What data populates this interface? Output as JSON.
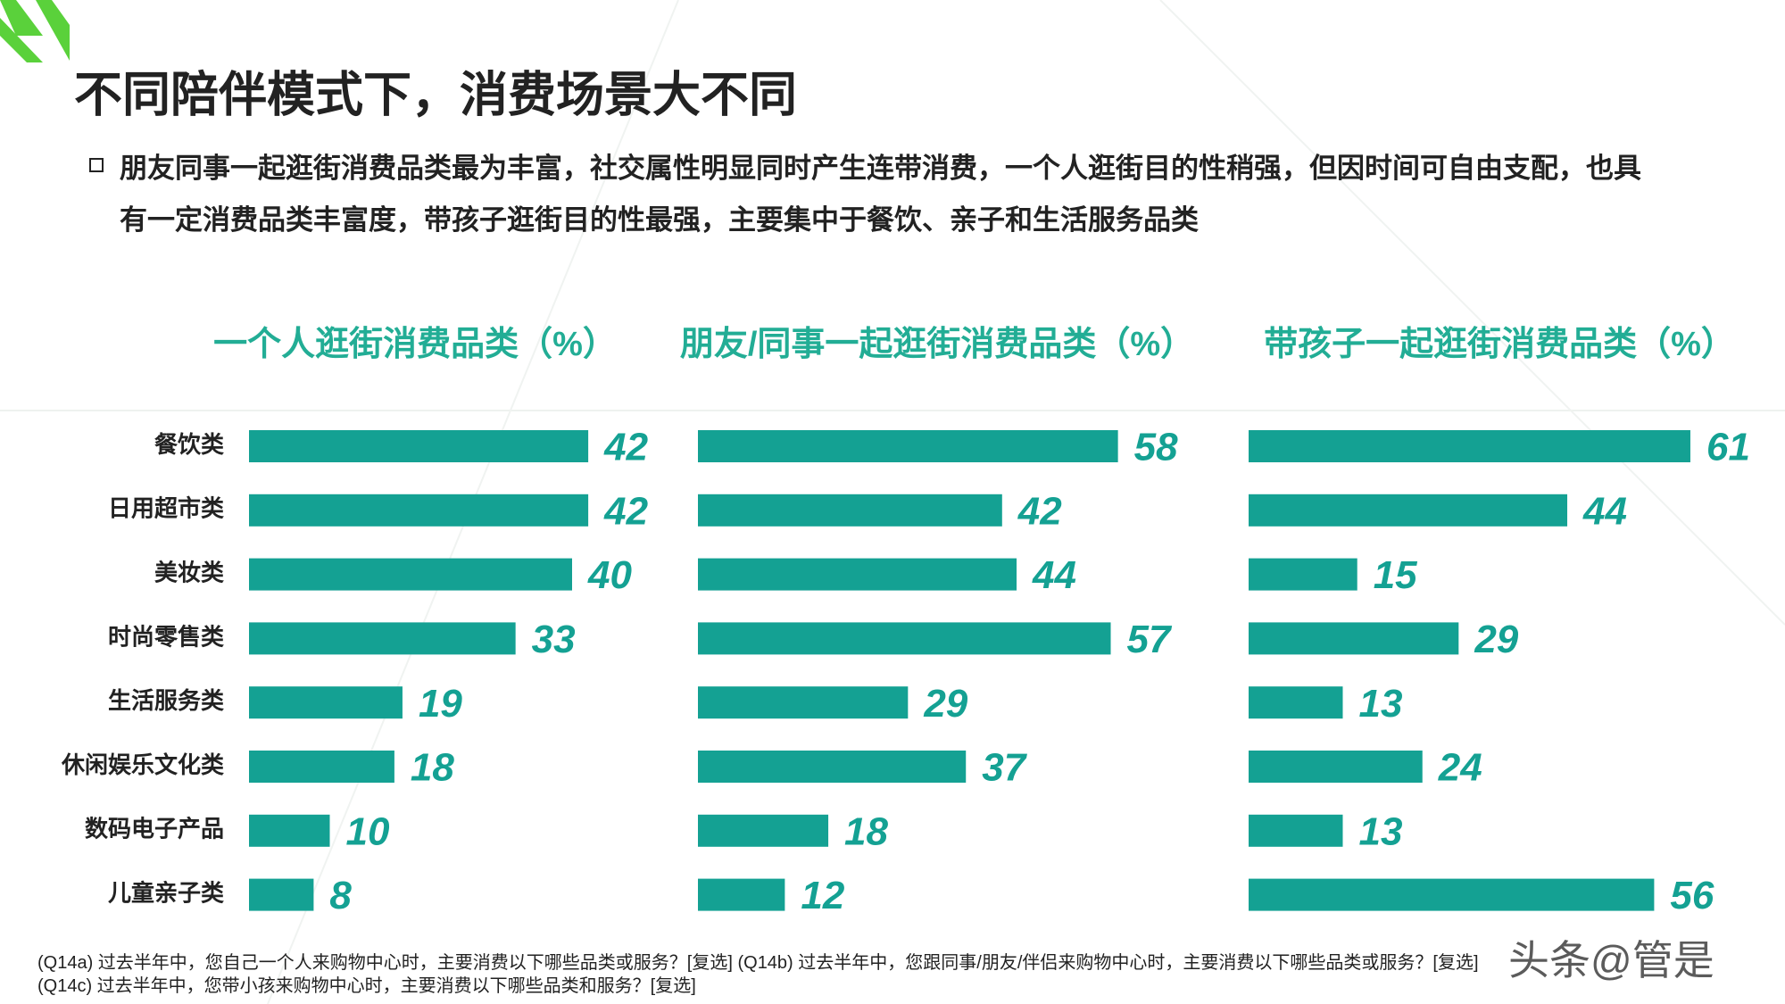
{
  "title": "不同陪伴模式下，消费场景大不同",
  "bullet": "朋友同事一起逛街消费品类最为丰富，社交属性明显同时产生连带消费，一个人逛街目的性稍强，但因时间可自由支配，也具有一定消费品类丰富度，带孩子逛街目的性最强，主要集中于餐饮、亲子和生活服务品类",
  "footnotes": [
    "(Q14a) 过去半年中，您自己一个人来购物中心时，主要消费以下哪些品类或服务？[复选]  (Q14b) 过去半年中，您跟同事/朋友/伴侣来购物中心时，主要消费以下哪些品类或服务？[复选]",
    "(Q14c) 过去半年中，您带小孩来购物中心时，主要消费以下哪些品类和服务？[复选]"
  ],
  "watermark": "头条@管是",
  "chart_data": [
    {
      "type": "bar",
      "orientation": "horizontal",
      "title": "一个人逛街消费品类（%）",
      "categories": [
        "餐饮类",
        "日用超市类",
        "美妆类",
        "时尚零售类",
        "生活服务类",
        "休闲娱乐文化类",
        "数码电子产品",
        "儿童亲子类"
      ],
      "values": [
        42,
        42,
        40,
        33,
        19,
        18,
        10,
        8
      ],
      "color": "#14a193",
      "xlim": [
        0,
        60
      ]
    },
    {
      "type": "bar",
      "orientation": "horizontal",
      "title": "朋友/同事一起逛街消费品类（%）",
      "values": [
        58,
        42,
        44,
        57,
        29,
        37,
        18,
        12
      ],
      "color": "#14a193",
      "xlim": [
        0,
        70
      ]
    },
    {
      "type": "bar",
      "orientation": "horizontal",
      "title": "带孩子一起逛街消费品类（%）",
      "values": [
        61,
        44,
        15,
        29,
        13,
        24,
        13,
        56
      ],
      "color": "#14a193",
      "xlim": [
        0,
        70
      ]
    }
  ]
}
